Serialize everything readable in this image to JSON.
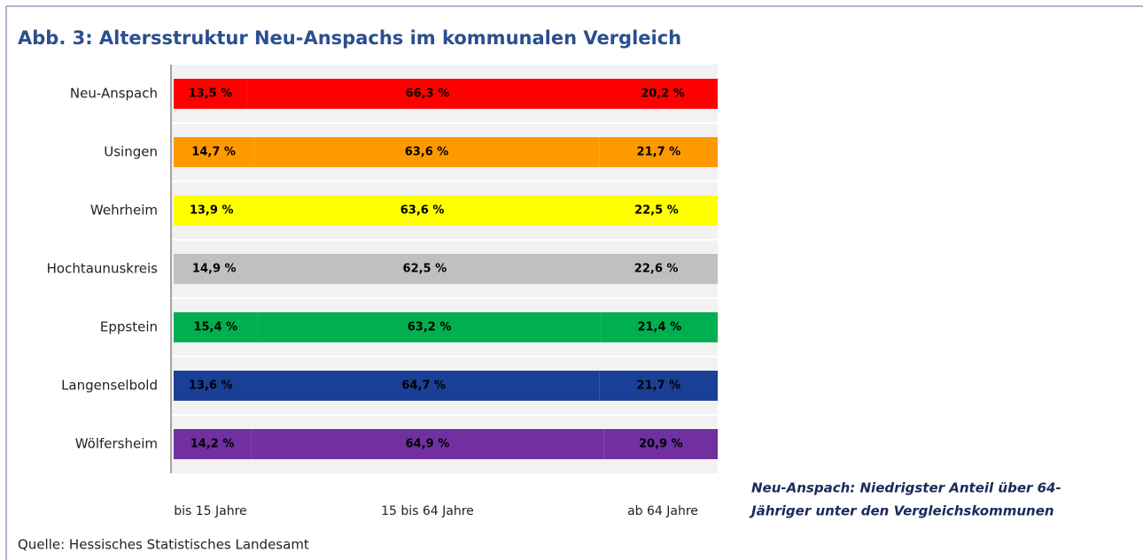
{
  "chart_data": {
    "type": "stacked_bar_horizontal",
    "title": "Abb. 3: Altersstruktur Neu-Anspachs im kommunalen Vergleich",
    "categories": [
      "Neu-Anspach",
      "Usingen",
      "Wehrheim",
      "Hochtaunuskreis",
      "Eppstein",
      "Langenselbold",
      "Wölfersheim"
    ],
    "colors": [
      "#ff0000",
      "#ff9900",
      "#ffff00",
      "#c0c0c0",
      "#00b050",
      "#1a3f96",
      "#7030a0"
    ],
    "series": [
      {
        "name": "bis 15 Jahre",
        "values": [
          13.5,
          14.7,
          13.9,
          14.9,
          15.4,
          13.6,
          14.2
        ],
        "value_labels": [
          "13,5 %",
          "14,7 %",
          "13,9 %",
          "14,9 %",
          "15,4 %",
          "13,6 %",
          "14,2 %"
        ]
      },
      {
        "name": "15 bis 64 Jahre",
        "values": [
          66.3,
          63.6,
          63.6,
          62.5,
          63.2,
          64.7,
          64.9
        ],
        "value_labels": [
          "66,3 %",
          "63,6 %",
          "63,6 %",
          "62,5 %",
          "63,2 %",
          "64,7 %",
          "64,9 %"
        ]
      },
      {
        "name": "ab 64 Jahre",
        "values": [
          20.2,
          21.7,
          22.5,
          22.6,
          21.4,
          21.7,
          20.9
        ],
        "value_labels": [
          "20,2 %",
          "21,7 %",
          "22,5 %",
          "22,6 %",
          "21,4 %",
          "21,7 %",
          "20,9 %"
        ]
      }
    ],
    "xlim": [
      0,
      100
    ],
    "annotation": [
      "Neu-Anspach: Niedrigster Anteil über 64-",
      "Jähriger unter den Vergleichskommunen"
    ],
    "source": "Quelle: Hessisches Statistisches Landesamt"
  }
}
